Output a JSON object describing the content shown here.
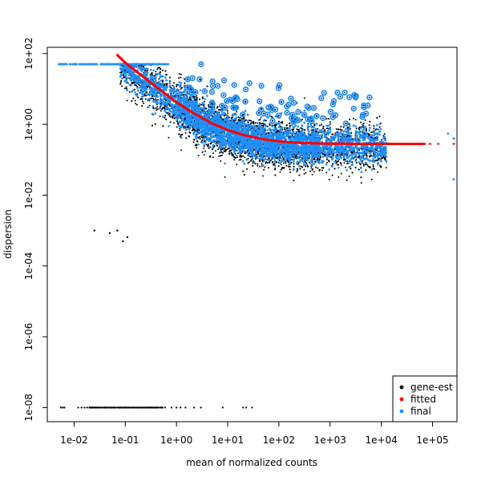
{
  "chart_data": {
    "type": "scatter",
    "title": "",
    "xlabel": "mean of normalized counts",
    "ylabel": "dispersion",
    "x_scale": "log10",
    "y_scale": "log10",
    "xlim": [
      0.003,
      300000
    ],
    "ylim": [
      4e-09,
      150
    ],
    "x_ticks": [
      {
        "value": 0.01,
        "label": "1e-02"
      },
      {
        "value": 0.1,
        "label": "1e-01"
      },
      {
        "value": 1,
        "label": "1e+00"
      },
      {
        "value": 10,
        "label": "1e+01"
      },
      {
        "value": 100,
        "label": "1e+02"
      },
      {
        "value": 1000,
        "label": "1e+03"
      },
      {
        "value": 10000,
        "label": "1e+04"
      },
      {
        "value": 100000,
        "label": "1e+05"
      }
    ],
    "y_ticks": [
      {
        "value": 1e-08,
        "label": "1e-08"
      },
      {
        "value": 1e-06,
        "label": "1e-06"
      },
      {
        "value": 0.0001,
        "label": "1e-04"
      },
      {
        "value": 0.01,
        "label": "1e-02"
      },
      {
        "value": 1,
        "label": "1e+00"
      },
      {
        "value": 100,
        "label": "1e+02"
      }
    ],
    "grid": false,
    "legend_position": "bottom-right",
    "series": [
      {
        "name": "gene-est",
        "color": "#000000",
        "marker": "dot"
      },
      {
        "name": "fitted",
        "color": "#ff0000",
        "marker": "dot"
      },
      {
        "name": "final",
        "color": "#1e90ff",
        "marker": "dot"
      }
    ],
    "fitted_curve": {
      "x": [
        0.07,
        0.1,
        0.2,
        0.5,
        1,
        2,
        5,
        10,
        20,
        50,
        100,
        200,
        500,
        1000,
        5000,
        10000,
        70000
      ],
      "y": [
        90,
        55,
        25,
        9,
        4.2,
        2.2,
        1.05,
        0.7,
        0.5,
        0.38,
        0.33,
        0.305,
        0.29,
        0.285,
        0.28,
        0.28,
        0.28
      ]
    },
    "fitted_outliers": {
      "x": [
        90000,
        130000,
        260000,
        260000
      ],
      "y": [
        0.28,
        0.28,
        0.28,
        0.28
      ]
    },
    "gene_est_isolated": {
      "x": [
        0.025,
        0.05,
        0.07,
        0.09,
        0.11
      ],
      "y": [
        0.001,
        0.00085,
        0.001,
        0.0005,
        0.00065
      ]
    },
    "gene_est_zero_row": {
      "y": 1e-08,
      "x": [
        0.0055,
        0.006,
        0.0065,
        0.012,
        0.014,
        0.016,
        0.018,
        0.02,
        0.025,
        0.03,
        0.04,
        0.05,
        0.06,
        0.08,
        0.1,
        0.12,
        0.15,
        0.2,
        0.25,
        0.3,
        0.4,
        0.5,
        0.6,
        0.8,
        1.0,
        1.2,
        1.5,
        2.2,
        3.0,
        8.0,
        20,
        23,
        30
      ]
    },
    "final_plateau": {
      "y": 50,
      "x_range": [
        0.005,
        0.7
      ]
    },
    "final_outliers_right": {
      "x": [
        200000,
        260000,
        260000
      ],
      "y": [
        0.55,
        0.4,
        0.028
      ]
    }
  }
}
